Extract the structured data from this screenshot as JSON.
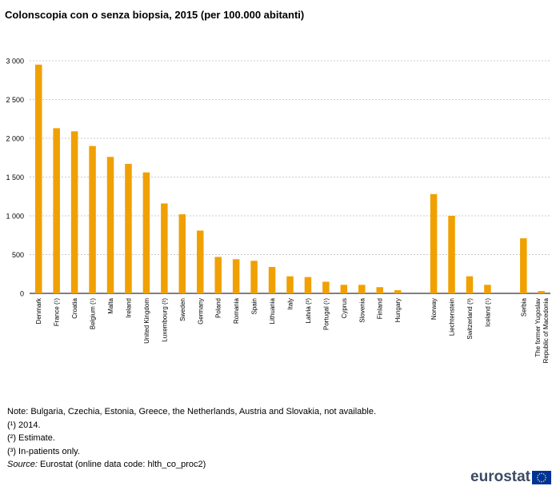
{
  "title": "Colonscopia con o senza biopsia, 2015 (per 100.000 abitanti)",
  "chart_data": {
    "type": "bar",
    "title": "Colonscopia con o senza biopsia, 2015 (per 100.000 abitanti)",
    "ylim": [
      0,
      3000
    ],
    "yticks": [
      0,
      500,
      1000,
      1500,
      2000,
      2500,
      3000
    ],
    "ytick_labels": [
      "0",
      "500",
      "1 000",
      "1 500",
      "2 000",
      "2 500",
      "3 000"
    ],
    "grid": true,
    "bar_color": "#f0a000",
    "groups": [
      {
        "categories": [
          "Denmark",
          "France (¹)",
          "Croatia",
          "Belgium (¹)",
          "Malta",
          "Ireland",
          "United Kingdom",
          "Luxembourg (²)",
          "Sweden",
          "Germany",
          "Poland",
          "Romania",
          "Spain",
          "Lithuania",
          "Italy",
          "Latvia (²)",
          "Portugal (¹)",
          "Cyprus",
          "Slovenia",
          "Finland",
          "Hungary"
        ],
        "values": [
          2950,
          2130,
          2090,
          1900,
          1760,
          1670,
          1560,
          1160,
          1020,
          810,
          470,
          440,
          420,
          340,
          220,
          210,
          150,
          110,
          110,
          80,
          40
        ]
      },
      {
        "categories": [
          "Norway",
          "Liechtenstein",
          "Switzerland (³)",
          "Iceland (¹)"
        ],
        "values": [
          1280,
          1000,
          220,
          110
        ]
      },
      {
        "categories": [
          "Serbia",
          "The former Yugoslav Republic of Macedonia"
        ],
        "values": [
          710,
          30
        ]
      }
    ]
  },
  "notes": {
    "line1": "Note: Bulgaria, Czechia, Estonia, Greece, the Netherlands, Austria and Slovakia, not available.",
    "line2": "(¹) 2014.",
    "line3": "(²) Estimate.",
    "line4": "(³) In-patients only.",
    "source_label": "Source:",
    "source_text": " Eurostat (online data code: hlth_co_proc2)"
  },
  "logo": {
    "text": "eurostat",
    "flag_color": "#003399",
    "star_color": "#ffdd00"
  }
}
